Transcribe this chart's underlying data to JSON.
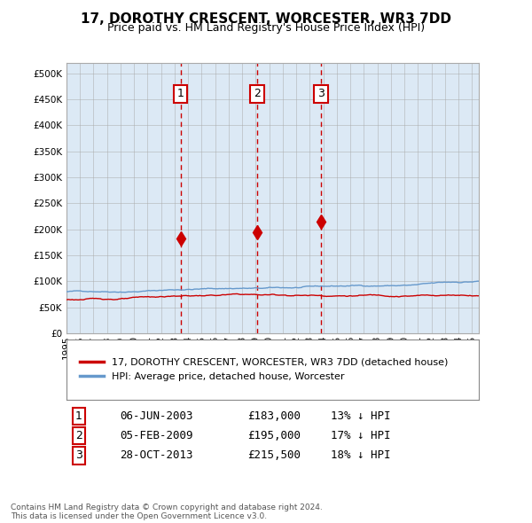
{
  "title": "17, DOROTHY CRESCENT, WORCESTER, WR3 7DD",
  "subtitle": "Price paid vs. HM Land Registry's House Price Index (HPI)",
  "background_color": "#dce9f5",
  "plot_bg_color": "#dce9f5",
  "hpi_color": "#6699cc",
  "price_color": "#cc0000",
  "marker_color": "#cc0000",
  "vline_color": "#cc0000",
  "grid_color": "#aaaaaa",
  "ylim": [
    0,
    520000
  ],
  "yticks": [
    0,
    50000,
    100000,
    150000,
    200000,
    250000,
    300000,
    350000,
    400000,
    450000,
    500000
  ],
  "purchases": [
    {
      "date_x": 2003.43,
      "price": 183000,
      "label": "1"
    },
    {
      "date_x": 2009.09,
      "price": 195000,
      "label": "2"
    },
    {
      "date_x": 2013.83,
      "price": 215500,
      "label": "3"
    }
  ],
  "legend_entries": [
    {
      "label": "17, DOROTHY CRESCENT, WORCESTER, WR3 7DD (detached house)",
      "color": "#cc0000"
    },
    {
      "label": "HPI: Average price, detached house, Worcester",
      "color": "#6699cc"
    }
  ],
  "table_rows": [
    {
      "num": "1",
      "date": "06-JUN-2003",
      "price": "£183,000",
      "pct": "13% ↓ HPI"
    },
    {
      "num": "2",
      "date": "05-FEB-2009",
      "price": "£195,000",
      "pct": "17% ↓ HPI"
    },
    {
      "num": "3",
      "date": "28-OCT-2013",
      "price": "£215,500",
      "pct": "18% ↓ HPI"
    }
  ],
  "footer": "Contains HM Land Registry data © Crown copyright and database right 2024.\nThis data is licensed under the Open Government Licence v3.0.",
  "xmin": 1995.0,
  "xmax": 2025.5
}
